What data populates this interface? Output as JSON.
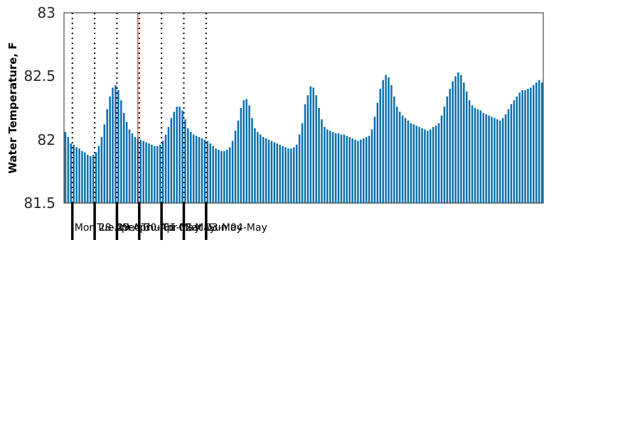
{
  "chart_data": {
    "type": "bar",
    "title": "",
    "ylabel": "Water Temperature, F",
    "xlabel": "",
    "ylim": [
      81.5,
      83
    ],
    "yticks": [
      81.5,
      82,
      82.5,
      83
    ],
    "ytick_labels": [
      "81.5",
      "82",
      "82.5",
      "83"
    ],
    "grid": false,
    "interval_hours": 3,
    "x_start": "2025-04-27 15:00",
    "day_labels": [
      "Mon 28-Apr",
      "Tue 29-Apr",
      "Wed 30-Apr",
      "Thu 01-May",
      "Fri 02-May",
      "Sat 03-May",
      "Sun 04-May"
    ],
    "current_time_marker_index": 27,
    "series": [
      {
        "values": [
          82.06,
          82.02,
          81.97,
          81.96,
          81.94,
          81.93,
          81.91,
          81.9,
          81.88,
          81.87,
          81.88,
          81.9,
          81.95,
          82.02,
          82.12,
          82.24,
          82.34,
          82.41,
          82.43,
          82.39,
          82.31,
          82.21,
          82.14,
          82.08,
          82.05,
          82.02,
          82.01,
          82.0,
          81.99,
          81.98,
          81.97,
          81.96,
          81.95,
          81.95,
          81.96,
          81.99,
          82.04,
          82.1,
          82.17,
          82.22,
          82.26,
          82.26,
          82.23,
          82.16,
          82.09,
          82.06,
          82.04,
          82.03,
          82.02,
          82.01,
          82.0,
          81.99,
          81.97,
          81.95,
          81.93,
          81.92,
          81.91,
          81.91,
          81.92,
          81.94,
          81.99,
          82.07,
          82.15,
          82.25,
          82.31,
          82.32,
          82.27,
          82.17,
          82.09,
          82.06,
          82.04,
          82.02,
          82.01,
          82.0,
          81.99,
          81.98,
          81.97,
          81.96,
          81.95,
          81.94,
          81.93,
          81.93,
          81.94,
          81.96,
          82.04,
          82.13,
          82.28,
          82.35,
          82.42,
          82.41,
          82.35,
          82.25,
          82.16,
          82.1,
          82.08,
          82.07,
          82.06,
          82.05,
          82.05,
          82.04,
          82.04,
          82.03,
          82.02,
          82.01,
          82.0,
          81.99,
          82.0,
          82.01,
          82.02,
          82.03,
          82.08,
          82.18,
          82.29,
          82.4,
          82.47,
          82.51,
          82.49,
          82.43,
          82.34,
          82.26,
          82.22,
          82.19,
          82.17,
          82.15,
          82.13,
          82.12,
          82.11,
          82.1,
          82.09,
          82.08,
          82.07,
          82.08,
          82.1,
          82.11,
          82.13,
          82.19,
          82.26,
          82.34,
          82.4,
          82.46,
          82.5,
          82.53,
          82.51,
          82.45,
          82.38,
          82.31,
          82.27,
          82.25,
          82.24,
          82.23,
          82.21,
          82.2,
          82.19,
          82.18,
          82.17,
          82.16,
          82.15,
          82.17,
          82.2,
          82.24,
          82.28,
          82.31,
          82.34,
          82.37,
          82.39,
          82.39,
          82.4,
          82.41,
          82.43,
          82.45,
          82.47,
          82.45
        ]
      }
    ]
  }
}
